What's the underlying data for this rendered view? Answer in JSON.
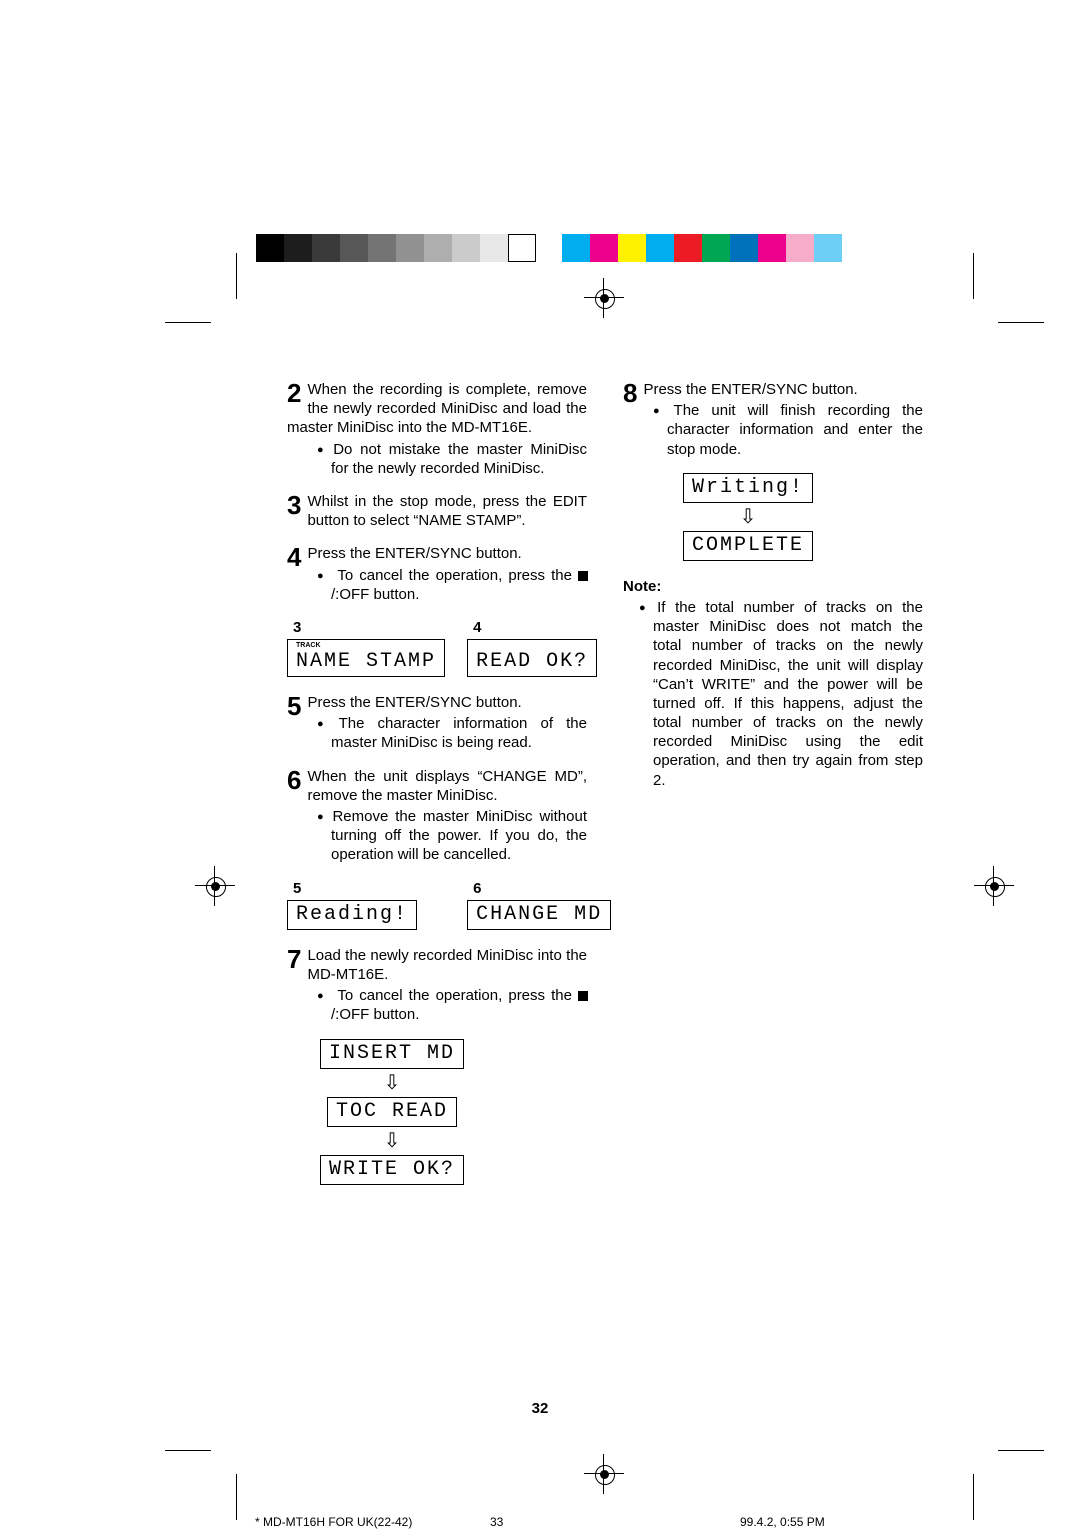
{
  "graystrip_colors": [
    "#000000",
    "#1d1d1d",
    "#3a3a3a",
    "#575757",
    "#747474",
    "#919191",
    "#aeaeae",
    "#cbcbcb",
    "#e8e8e8",
    "#ffffff"
  ],
  "colorstrip_colors": [
    "#00aeef",
    "#ec008c",
    "#fff200",
    "#00aeef",
    "#ed1c24",
    "#00a651",
    "#0072bc",
    "#ec008c",
    "#f7adc9",
    "#6dcff6"
  ],
  "steps": {
    "s2": {
      "n": "2",
      "main": "When the recording is complete, remove the newly recorded MiniDisc and load the master MiniDisc into the MD-MT16E.",
      "sub1": "Do not mistake the master MiniDisc for the newly recorded MiniDisc."
    },
    "s3": {
      "n": "3",
      "main": "Whilst in the stop mode, press the EDIT button to select “NAME STAMP”."
    },
    "s4": {
      "n": "4",
      "main": "Press the ENTER/SYNC button.",
      "sub1_pre": "To cancel the operation, press the ",
      "sub1_post": "/:OFF button."
    },
    "s5": {
      "n": "5",
      "main": "Press the ENTER/SYNC button.",
      "sub1": "The character information of the master MiniDisc is being read."
    },
    "s6": {
      "n": "6",
      "main": "When the unit displays “CHANGE MD”, remove the master MiniDisc.",
      "sub1": "Remove the master MiniDisc without turning off the power. If you do, the operation will be cancelled."
    },
    "s7": {
      "n": "7",
      "main": "Load the newly recorded MiniDisc into the MD-MT16E.",
      "sub1_pre": "To cancel the operation, press the ",
      "sub1_post": "/:OFF button."
    },
    "s8": {
      "n": "8",
      "main": "Press the ENTER/SYNC button.",
      "sub1": "The unit will finish recording the character information and enter the stop mode."
    }
  },
  "lcd": {
    "row34": {
      "lab3": "3",
      "lab4": "4",
      "track": "TRACK",
      "d3": "NAME STAMP",
      "d4": "READ OK?"
    },
    "row56": {
      "lab5": "5",
      "lab6": "6",
      "d5": "Reading!",
      "d6": "CHANGE MD"
    },
    "stack7": {
      "a": "INSERT MD",
      "b": "TOC READ",
      "c": "WRITE OK?"
    },
    "stack8": {
      "a": "Writing!",
      "b": "COMPLETE"
    }
  },
  "note": {
    "head": "Note:",
    "body": "If the total number of tracks on the master MiniDisc does not match the total number of tracks on the newly recorded MiniDisc, the unit will display “Can’t WRITE” and the power will be turned off. If this happens, adjust the total number of tracks on the newly recorded MiniDisc using the edit operation, and then try again from step 2."
  },
  "page_number": "32",
  "footer": {
    "left": "*  MD-MT16H FOR UK(22-42)",
    "mid": "33",
    "right": "99.4.2, 0:55 PM"
  }
}
